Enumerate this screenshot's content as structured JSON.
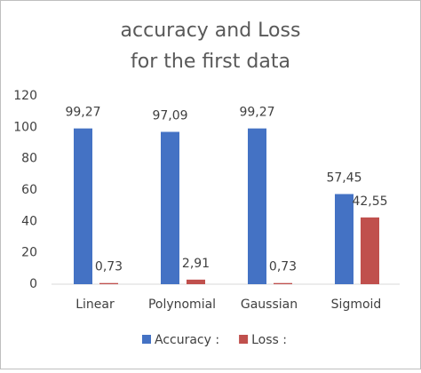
{
  "chart_data": {
    "type": "bar",
    "title": [
      "accuracy and Loss",
      "for the first data"
    ],
    "categories": [
      "Linear",
      "Polynomial",
      "Gaussian",
      "Sigmoid"
    ],
    "series": [
      {
        "name": "Accuracy :",
        "color": "#4472c4",
        "values": [
          99.27,
          97.09,
          99.27,
          57.45
        ],
        "value_labels": [
          "99,27",
          "97,09",
          "99,27",
          "57,45"
        ]
      },
      {
        "name": "Loss :",
        "color": "#c0504d",
        "values": [
          0.73,
          2.91,
          0.73,
          42.55
        ],
        "value_labels": [
          "0,73",
          "2,91",
          "0,73",
          "42,55"
        ]
      }
    ],
    "ylim": [
      0,
      120
    ],
    "yticks": [
      0,
      20,
      40,
      60,
      80,
      100,
      120
    ],
    "grid": false,
    "legend": "bottom"
  }
}
